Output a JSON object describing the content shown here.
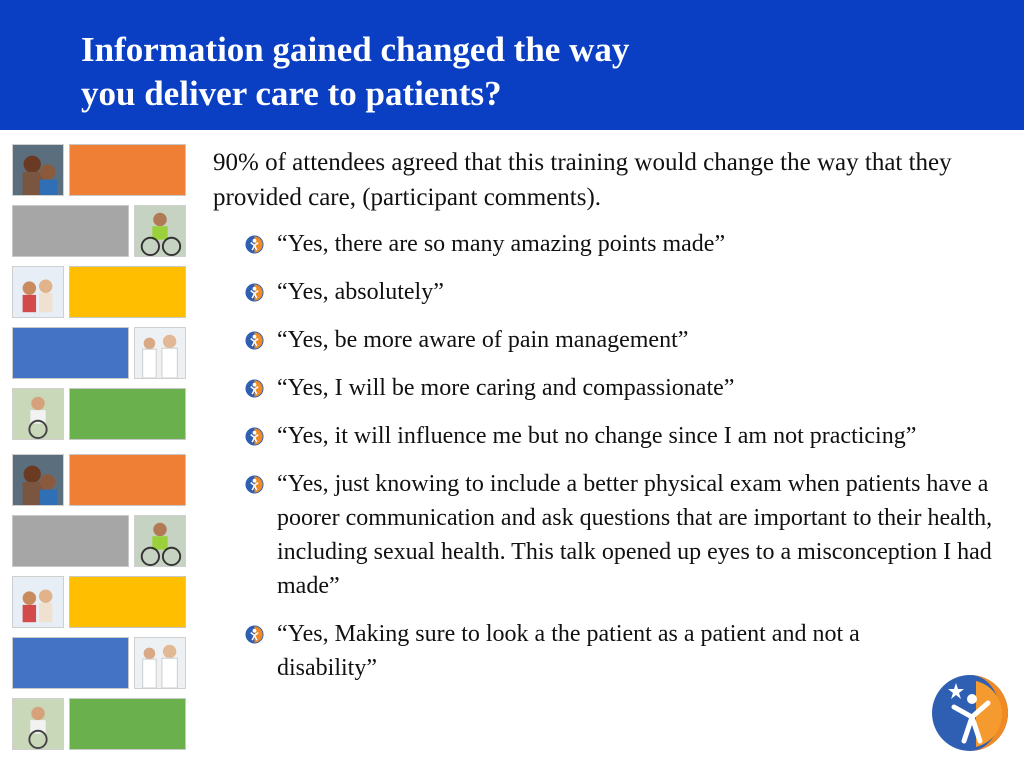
{
  "slide": {
    "title_line1": "Information gained changed the way",
    "title_line2": "you deliver care to patients?",
    "intro": "90% of attendees agreed that this training would change the way that they provided care, (participant comments).",
    "bullets": [
      "“Yes, there are so many amazing points made”",
      "“Yes, absolutely”",
      "“Yes, be more aware of pain management”",
      "“Yes, I will be more caring and compassionate”",
      "“Yes, it will influence me but no change since I am not practicing”",
      "“Yes, just knowing to include a better physical exam when patients have a poorer communication and ask questions that are important to their health, including sexual health. This talk opened up eyes to a misconception I had made”",
      "“Yes, Making sure to look a the patient as a patient and not a disability”"
    ]
  },
  "colors": {
    "header_blue": "#0a3fc4",
    "tile_orange": "#ee7f35",
    "tile_gray": "#a6a6a6",
    "tile_yellow": "#ffbf00",
    "tile_blue": "#4472c4",
    "tile_green": "#6ab04c",
    "bullet_blue": "#2f5fb3",
    "bullet_orange": "#f08a24"
  },
  "icons": {
    "bullet": "person-figure-bullet-icon",
    "logo": "organization-logo-icon"
  }
}
